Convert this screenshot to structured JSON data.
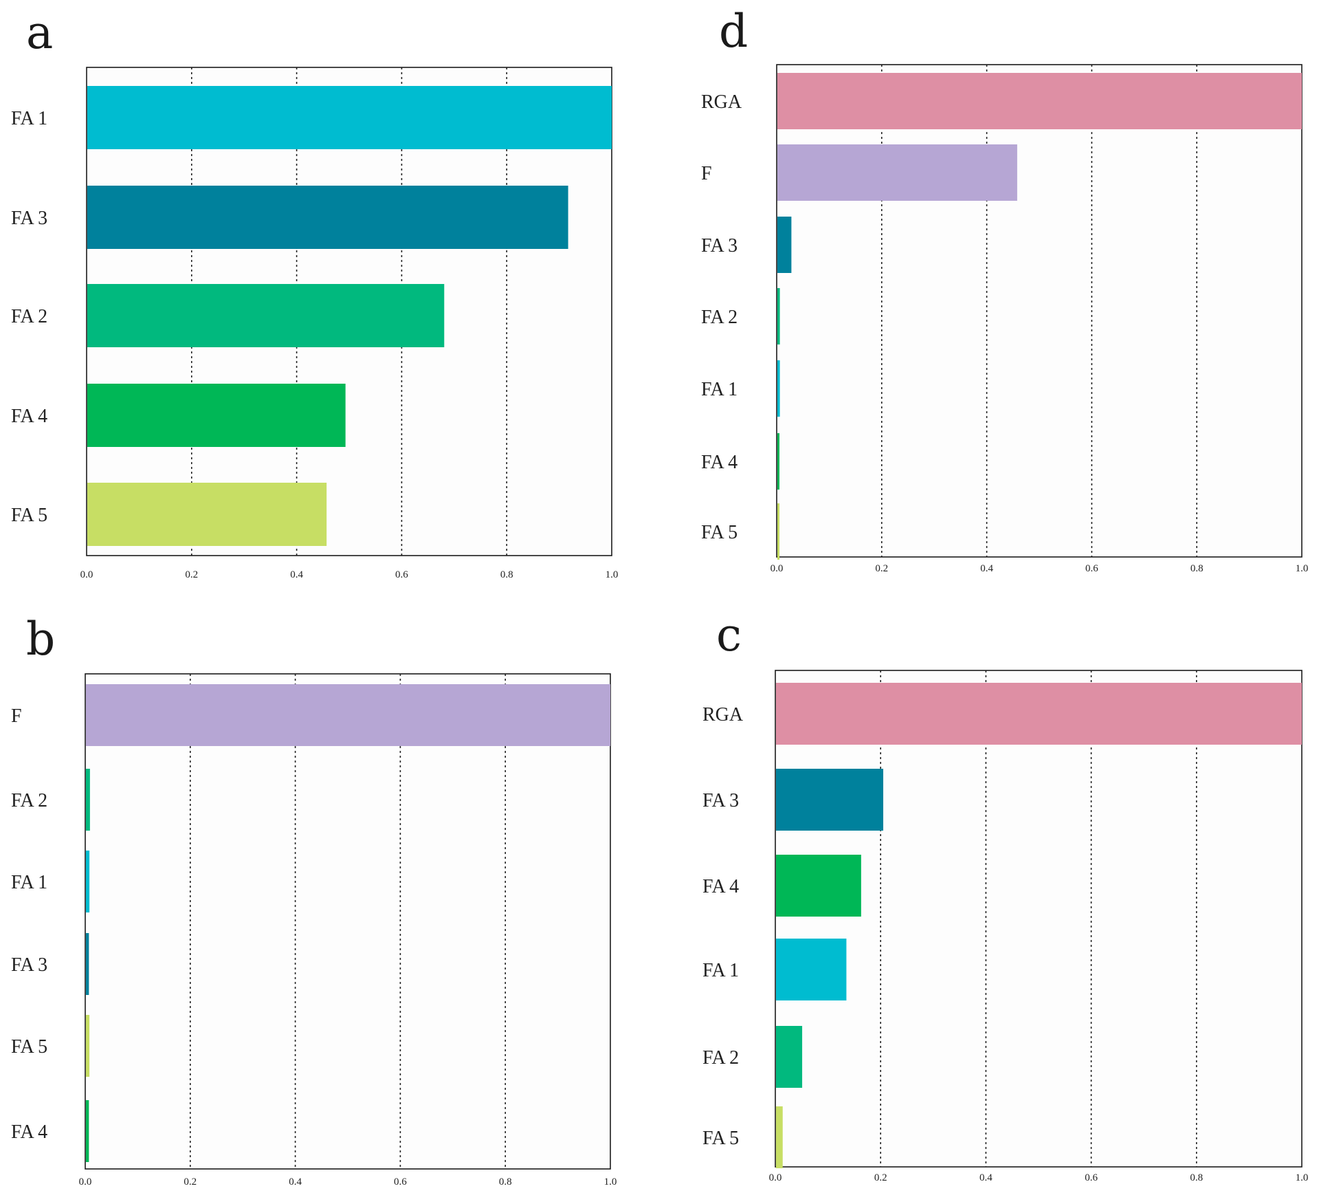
{
  "chart_data": [
    {
      "panel": "a",
      "type": "bar",
      "orientation": "horizontal",
      "xlim": [
        0,
        1.0
      ],
      "ticks": [
        "0.0",
        "0.2",
        "0.4",
        "0.6",
        "0.8",
        "1.0"
      ],
      "grid": "vertical dashed at 0.2, 0.4, 0.6, 0.8",
      "bars": [
        {
          "label": "FA 1",
          "value": 1.0,
          "color": "#00BCD0"
        },
        {
          "label": "FA 3",
          "value": 0.917,
          "color": "#00819C"
        },
        {
          "label": "FA 2",
          "value": 0.681,
          "color": "#01B97E"
        },
        {
          "label": "FA 4",
          "value": 0.493,
          "color": "#00B756"
        },
        {
          "label": "FA 5",
          "value": 0.457,
          "color": "#C7DE64"
        }
      ]
    },
    {
      "panel": "d",
      "type": "bar",
      "orientation": "horizontal",
      "xlim": [
        0,
        1.0
      ],
      "ticks": [
        "0.0",
        "0.2",
        "0.4",
        "0.6",
        "0.8",
        "1.0"
      ],
      "grid": "vertical dashed at 0.2, 0.4, 0.6, 0.8",
      "bars": [
        {
          "label": "RGA",
          "value": 1.0,
          "color": "#DE8FA4"
        },
        {
          "label": "F",
          "value": 0.458,
          "color": "#B6A6D4"
        },
        {
          "label": "FA 3",
          "value": 0.028,
          "color": "#00819C"
        },
        {
          "label": "FA 2",
          "value": 0.006,
          "color": "#01B97E"
        },
        {
          "label": "FA 1",
          "value": 0.006,
          "color": "#00BCD0"
        },
        {
          "label": "FA 4",
          "value": 0.005,
          "color": "#00B756"
        },
        {
          "label": "FA 5",
          "value": 0.005,
          "color": "#C7DE64"
        }
      ]
    },
    {
      "panel": "b",
      "type": "bar",
      "orientation": "horizontal",
      "xlim": [
        0,
        1.0
      ],
      "ticks": [
        "0.0",
        "0.2",
        "0.4",
        "0.6",
        "0.8",
        "1.0"
      ],
      "grid": "vertical dashed at 0.2, 0.4, 0.6, 0.8",
      "bars": [
        {
          "label": "F",
          "value": 1.0,
          "color": "#B6A6D4"
        },
        {
          "label": "FA 2",
          "value": 0.009,
          "color": "#01B97E"
        },
        {
          "label": "FA 1",
          "value": 0.008,
          "color": "#00BCD0"
        },
        {
          "label": "FA 3",
          "value": 0.007,
          "color": "#00819C"
        },
        {
          "label": "FA 5",
          "value": 0.008,
          "color": "#C7DE64"
        },
        {
          "label": "FA 4",
          "value": 0.007,
          "color": "#00B756"
        }
      ]
    },
    {
      "panel": "c",
      "type": "bar",
      "orientation": "horizontal",
      "xlim": [
        0,
        1.0
      ],
      "ticks": [
        "0.0",
        "0.2",
        "0.4",
        "0.6",
        "0.8",
        "1.0"
      ],
      "grid": "vertical dashed at 0.2, 0.4, 0.6, 0.8",
      "bars": [
        {
          "label": "RGA",
          "value": 1.0,
          "color": "#DE8FA4"
        },
        {
          "label": "FA 3",
          "value": 0.205,
          "color": "#00819C"
        },
        {
          "label": "FA 4",
          "value": 0.163,
          "color": "#00B756"
        },
        {
          "label": "FA 1",
          "value": 0.135,
          "color": "#00BCD0"
        },
        {
          "label": "FA 2",
          "value": 0.051,
          "color": "#01B97E"
        },
        {
          "label": "FA 5",
          "value": 0.014,
          "color": "#C7DE64"
        }
      ]
    }
  ]
}
